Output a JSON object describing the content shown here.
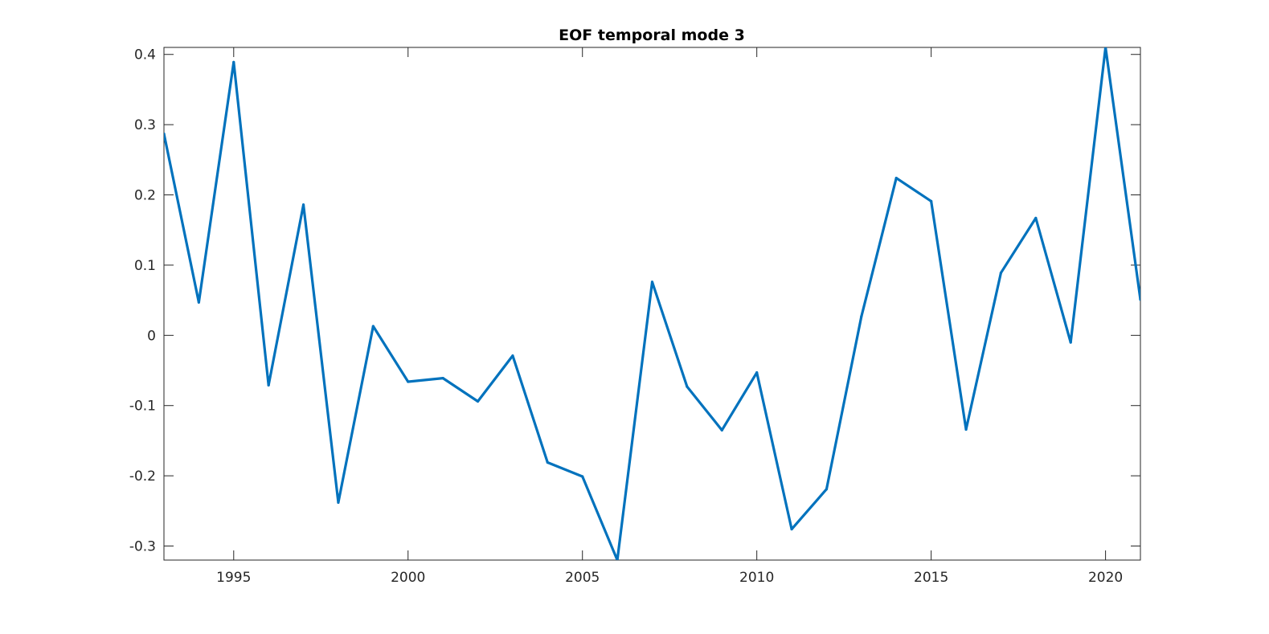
{
  "chart_data": {
    "type": "line",
    "title": "EOF temporal mode 3",
    "xlabel": "",
    "ylabel": "",
    "xlim": [
      1993,
      2021
    ],
    "ylim": [
      -0.32,
      0.41
    ],
    "xticks": [
      1995,
      2000,
      2005,
      2010,
      2015,
      2020
    ],
    "yticks": [
      -0.3,
      -0.2,
      -0.1,
      0,
      0.1,
      0.2,
      0.3,
      0.4
    ],
    "ytick_labels": [
      "-0.3",
      "-0.2",
      "-0.1",
      "0",
      "0.1",
      "0.2",
      "0.3",
      "0.4"
    ],
    "grid": false,
    "legend": "none",
    "series": [
      {
        "color": "#0072BD",
        "x": [
          1993,
          1994,
          1995,
          1996,
          1997,
          1998,
          1999,
          2000,
          2001,
          2002,
          2003,
          2004,
          2005,
          2006,
          2007,
          2008,
          2009,
          2010,
          2011,
          2012,
          2013,
          2014,
          2015,
          2016,
          2017,
          2018,
          2019,
          2020,
          2021
        ],
        "y": [
          0.287,
          0.047,
          0.389,
          -0.071,
          0.186,
          -0.238,
          0.013,
          -0.066,
          -0.061,
          -0.094,
          -0.029,
          -0.181,
          -0.201,
          -0.32,
          0.076,
          -0.073,
          -0.135,
          -0.053,
          -0.276,
          -0.219,
          0.027,
          0.224,
          0.191,
          -0.134,
          0.089,
          0.167,
          -0.01,
          0.41,
          0.051
        ]
      }
    ]
  }
}
